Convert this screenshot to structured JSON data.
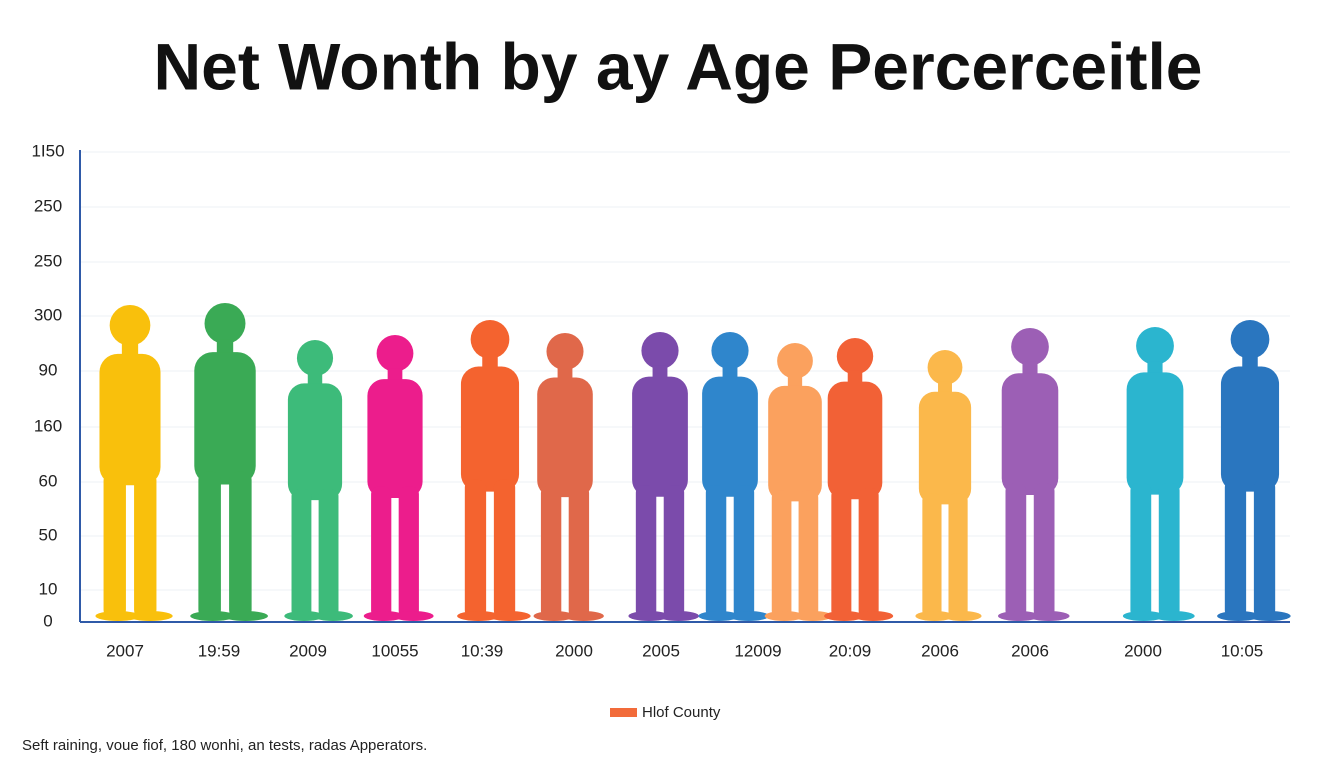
{
  "chart_data": {
    "type": "pictograph",
    "title": "Net Wonth by ay Age Percerceitle",
    "y_labels": [
      "1I50",
      "250",
      "250",
      "300",
      "90",
      "160",
      "60",
      "50",
      "10",
      "0"
    ],
    "categories": [
      "2007",
      "19:59",
      "2009",
      "10055",
      "10:39",
      "2000",
      "2005",
      "12009",
      "20:09",
      "2006",
      "2006",
      "2000",
      "10:05"
    ],
    "figure_colors": [
      "#f9c00c",
      "#3aaa55",
      "#3dbb7a",
      "#ec1d8c",
      "#f4632f",
      "#e0684a",
      "#7b4bab",
      "#2f86cc",
      "#fba15e",
      "#f26136",
      "#fbb84b",
      "#9c5fb5",
      "#2bb5cf",
      "#2a76bf"
    ],
    "grid": true,
    "legend": {
      "label": "Hlof County",
      "color": "#f26b3a"
    },
    "footnote": "Seft raining, voue fiof, 180 wonhi, an tests, radas Apperators."
  }
}
